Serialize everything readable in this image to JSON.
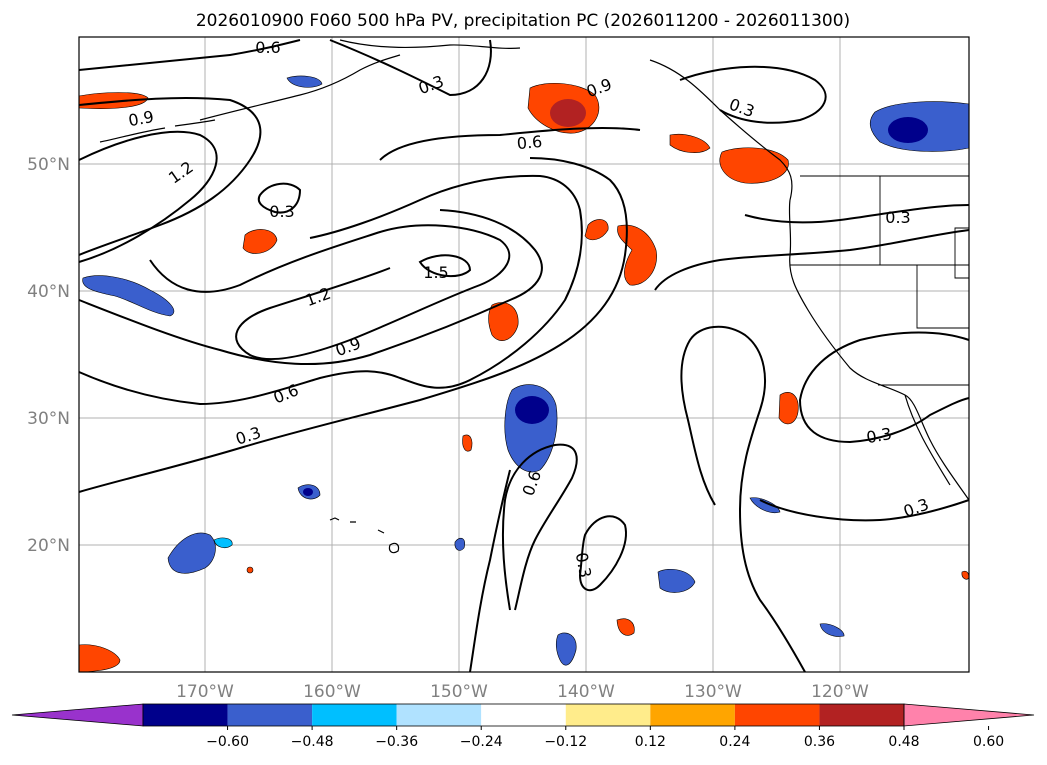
{
  "title": "2026010900 F060 500 hPa PV, precipitation PC (2026011200 - 2026011300)",
  "lat_labels": [
    "50°N",
    "40°N",
    "30°N",
    "20°N"
  ],
  "lon_labels": [
    "170°W",
    "160°W",
    "150°W",
    "140°W",
    "130°W",
    "120°W"
  ],
  "contour_labels": [
    "0.6",
    "0.3",
    "0.9",
    "0.3",
    "0.9",
    "0.6",
    "1.2",
    "0.3",
    "1.5",
    "1.2",
    "0.9",
    "0.6",
    "0.3",
    "0.3",
    "0.6",
    "0.3",
    "0.3",
    "0.3"
  ],
  "colorbar": {
    "ticks": [
      "−0.60",
      "−0.48",
      "−0.36",
      "−0.24",
      "−0.12",
      "0.12",
      "0.24",
      "0.36",
      "0.48",
      "0.60"
    ],
    "colors": [
      "#9932cc",
      "#00008b",
      "#3a5fcd",
      "#00bfff",
      "#b0e2ff",
      "#ffffff",
      "#ffec8b",
      "#ffa500",
      "#ff4500",
      "#b22222",
      "#ff82ab"
    ]
  },
  "colors": {
    "neg_dark": "#00008b",
    "neg_mid": "#3a5fcd",
    "neg_light": "#00bfff",
    "pos_light": "#ffec8b",
    "pos_mid": "#ff4500",
    "pos_dark": "#b22222"
  }
}
